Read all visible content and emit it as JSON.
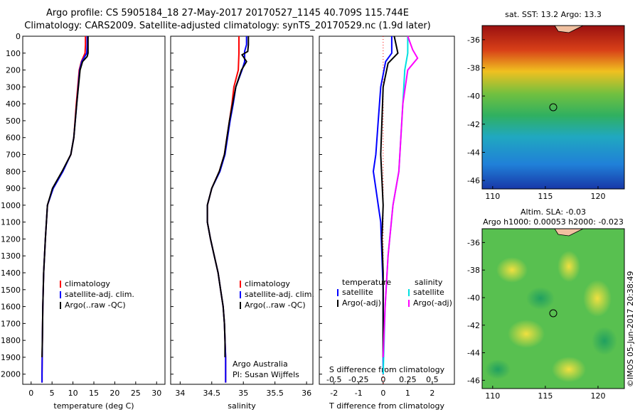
{
  "header": {
    "title_line1": "Argo profile: CS 5905184_18 27-May-2017 20170527_1145 40.709S 115.744E",
    "title_line2": "Climatology: CARS2009. Satellite-adjusted climatology: synTS_20170529.nc (1.9d later)"
  },
  "colors": {
    "climatology": "#ff0000",
    "satellite": "#0000ff",
    "argo": "#000000",
    "salinity_satellite": "#00e0e0",
    "salinity_argo": "#ff00ff"
  },
  "chart_data": [
    {
      "type": "line",
      "panel": "temperature",
      "xlabel": "temperature (deg C)",
      "ylabel": "",
      "xlim": [
        -2,
        32
      ],
      "ylim": [
        2060,
        0
      ],
      "xticks": [
        "0",
        "5",
        "10",
        "15",
        "20",
        "25",
        "30"
      ],
      "yticks": [
        "0",
        "100",
        "200",
        "300",
        "400",
        "500",
        "600",
        "700",
        "800",
        "900",
        "1000",
        "1100",
        "1200",
        "1300",
        "1400",
        "1500",
        "1600",
        "1700",
        "1800",
        "1900",
        "2000"
      ],
      "legend": [
        "climatology",
        "satellite-adj. clim.",
        "Argo(..raw -QC)"
      ],
      "series": [
        {
          "name": "climatology",
          "points": [
            [
              13.0,
              0
            ],
            [
              13.0,
              50
            ],
            [
              12.9,
              100
            ],
            [
              12.0,
              150
            ],
            [
              11.5,
              200
            ],
            [
              10.8,
              400
            ],
            [
              10.2,
              600
            ],
            [
              9.5,
              700
            ],
            [
              7.5,
              800
            ],
            [
              5.2,
              900
            ],
            [
              3.9,
              1000
            ],
            [
              3.4,
              1200
            ],
            [
              3.0,
              1400
            ],
            [
              2.8,
              1600
            ],
            [
              2.7,
              1800
            ],
            [
              2.6,
              2000
            ],
            [
              2.6,
              2050
            ]
          ]
        },
        {
          "name": "satellite-adj. clim.",
          "points": [
            [
              13.4,
              0
            ],
            [
              13.4,
              50
            ],
            [
              13.3,
              100
            ],
            [
              12.1,
              150
            ],
            [
              11.6,
              200
            ],
            [
              10.9,
              400
            ],
            [
              10.2,
              600
            ],
            [
              9.5,
              700
            ],
            [
              7.6,
              800
            ],
            [
              5.3,
              900
            ],
            [
              3.9,
              1000
            ],
            [
              3.4,
              1200
            ],
            [
              3.0,
              1400
            ],
            [
              2.8,
              1600
            ],
            [
              2.7,
              1800
            ],
            [
              2.6,
              2000
            ],
            [
              2.6,
              2050
            ]
          ]
        },
        {
          "name": "Argo(..raw -QC)",
          "points": [
            [
              13.6,
              0
            ],
            [
              13.6,
              50
            ],
            [
              13.6,
              100
            ],
            [
              13.4,
              120
            ],
            [
              12.3,
              150
            ],
            [
              11.7,
              200
            ],
            [
              10.9,
              400
            ],
            [
              10.2,
              600
            ],
            [
              9.5,
              700
            ],
            [
              7.4,
              800
            ],
            [
              5.1,
              900
            ],
            [
              3.9,
              1000
            ],
            [
              3.4,
              1200
            ],
            [
              3.0,
              1400
            ],
            [
              2.8,
              1600
            ],
            [
              2.7,
              1800
            ],
            [
              2.6,
              1900
            ]
          ]
        }
      ]
    },
    {
      "type": "line",
      "panel": "salinity",
      "xlabel": "salinity",
      "xlim": [
        33.85,
        36.1
      ],
      "ylim": [
        2060,
        0
      ],
      "xticks": [
        "34",
        "34.5",
        "35",
        "35.5",
        "36"
      ],
      "legend": [
        "climatology",
        "satellite-adj. clim.",
        "Argo(..raw -QC)"
      ],
      "annotations": [
        "Argo Australia",
        "PI: Susan Wijffels"
      ],
      "series": [
        {
          "name": "climatology",
          "points": [
            [
              34.93,
              0
            ],
            [
              34.93,
              50
            ],
            [
              34.93,
              100
            ],
            [
              34.92,
              200
            ],
            [
              34.85,
              300
            ],
            [
              34.82,
              400
            ],
            [
              34.78,
              500
            ],
            [
              34.74,
              600
            ],
            [
              34.7,
              700
            ],
            [
              34.62,
              800
            ],
            [
              34.5,
              900
            ],
            [
              34.43,
              1000
            ],
            [
              34.43,
              1100
            ],
            [
              34.48,
              1200
            ],
            [
              34.54,
              1300
            ],
            [
              34.6,
              1400
            ],
            [
              34.64,
              1500
            ],
            [
              34.68,
              1600
            ],
            [
              34.7,
              1700
            ],
            [
              34.71,
              1800
            ],
            [
              34.72,
              1900
            ],
            [
              34.72,
              2050
            ]
          ]
        },
        {
          "name": "satellite-adj. clim.",
          "points": [
            [
              35.05,
              0
            ],
            [
              35.05,
              50
            ],
            [
              35.02,
              90
            ],
            [
              35.02,
              150
            ],
            [
              34.98,
              200
            ],
            [
              34.88,
              300
            ],
            [
              34.84,
              400
            ],
            [
              34.79,
              500
            ],
            [
              34.75,
              600
            ],
            [
              34.71,
              700
            ],
            [
              34.63,
              800
            ],
            [
              34.5,
              900
            ],
            [
              34.43,
              1000
            ],
            [
              34.43,
              1100
            ],
            [
              34.48,
              1200
            ],
            [
              34.54,
              1300
            ],
            [
              34.6,
              1400
            ],
            [
              34.64,
              1500
            ],
            [
              34.68,
              1600
            ],
            [
              34.7,
              1700
            ],
            [
              34.71,
              1800
            ],
            [
              34.72,
              1900
            ],
            [
              34.72,
              2050
            ]
          ]
        },
        {
          "name": "Argo(..raw -QC)",
          "points": [
            [
              35.08,
              0
            ],
            [
              35.08,
              50
            ],
            [
              35.07,
              90
            ],
            [
              34.98,
              110
            ],
            [
              35.05,
              150
            ],
            [
              34.97,
              200
            ],
            [
              34.88,
              300
            ],
            [
              34.83,
              400
            ],
            [
              34.78,
              500
            ],
            [
              34.74,
              600
            ],
            [
              34.7,
              700
            ],
            [
              34.62,
              800
            ],
            [
              34.5,
              900
            ],
            [
              34.43,
              1000
            ],
            [
              34.43,
              1100
            ],
            [
              34.48,
              1200
            ],
            [
              34.54,
              1300
            ],
            [
              34.6,
              1400
            ],
            [
              34.64,
              1500
            ],
            [
              34.68,
              1600
            ],
            [
              34.7,
              1700
            ],
            [
              34.71,
              1800
            ],
            [
              34.71,
              1900
            ]
          ]
        }
      ]
    },
    {
      "type": "line",
      "panel": "difference",
      "xlabel": "T difference from climatology",
      "x2label": "S difference from climatology",
      "xlim": [
        -2.6,
        2.9
      ],
      "ylim": [
        2060,
        0
      ],
      "xticks": [
        "-2",
        "-1",
        "0",
        "1",
        "2"
      ],
      "x2ticks": [
        "-0.5",
        "-0.25",
        "0",
        "0.25",
        "0.5"
      ],
      "legend_left_header": "temperature",
      "legend_right_header": "salinity",
      "legend": [
        "satellite",
        "Argo(-adj)",
        "satellite",
        "Argo(-adj)"
      ],
      "series": [
        {
          "name": "temperature satellite",
          "points": [
            [
              0.35,
              0
            ],
            [
              0.35,
              50
            ],
            [
              0.35,
              100
            ],
            [
              0.1,
              150
            ],
            [
              -0.1,
              300
            ],
            [
              -0.2,
              500
            ],
            [
              -0.3,
              700
            ],
            [
              -0.4,
              800
            ],
            [
              -0.3,
              900
            ],
            [
              -0.2,
              1000
            ],
            [
              -0.1,
              1100
            ],
            [
              -0.05,
              1300
            ],
            [
              0,
              1500
            ],
            [
              0,
              2000
            ]
          ]
        },
        {
          "name": "temperature Argo(-adj)",
          "points": [
            [
              0.45,
              0
            ],
            [
              0.6,
              100
            ],
            [
              0.2,
              160
            ],
            [
              0,
              300
            ],
            [
              -0.05,
              500
            ],
            [
              -0.1,
              700
            ],
            [
              -0.05,
              850
            ],
            [
              0,
              1000
            ],
            [
              -0.05,
              1200
            ],
            [
              0,
              1400
            ],
            [
              0,
              1900
            ]
          ]
        },
        {
          "name": "salinity satellite",
          "points": [
            [
              0.25,
              0
            ],
            [
              0.25,
              100
            ],
            [
              0.22,
              200
            ],
            [
              0.2,
              400
            ],
            [
              0.18,
              600
            ],
            [
              0.16,
              800
            ],
            [
              0.1,
              1000
            ],
            [
              0.05,
              1300
            ],
            [
              0.02,
              1600
            ],
            [
              0,
              2000
            ]
          ]
        },
        {
          "name": "salinity Argo(-adj)",
          "points": [
            [
              0.25,
              0
            ],
            [
              0.3,
              80
            ],
            [
              0.35,
              130
            ],
            [
              0.25,
              200
            ],
            [
              0.2,
              400
            ],
            [
              0.18,
              600
            ],
            [
              0.16,
              800
            ],
            [
              0.1,
              1000
            ],
            [
              0.05,
              1300
            ],
            [
              0.02,
              1600
            ],
            [
              0,
              1900
            ]
          ]
        }
      ]
    },
    {
      "type": "heatmap",
      "panel": "sst_map",
      "title": "sat. SST: 13.2  Argo: 13.3",
      "xticks": [
        "110",
        "115",
        "120"
      ],
      "yticks": [
        "-36",
        "-38",
        "-40",
        "-42",
        "-44",
        "-46"
      ],
      "marker": {
        "lon": 115.744,
        "lat": -40.709
      }
    },
    {
      "type": "heatmap",
      "panel": "sla_map",
      "title_line1": "Altim. SLA: -0.03",
      "title_line2": "Argo h1000: 0.00053 h2000: -0.023",
      "xticks": [
        "110",
        "115",
        "120"
      ],
      "yticks": [
        "-36",
        "-38",
        "-40",
        "-42",
        "-44",
        "-46"
      ],
      "marker": {
        "lon": 115.744,
        "lat": -40.709
      }
    }
  ],
  "credit": "©IMOS 05-Jun-2017 20:38:49"
}
